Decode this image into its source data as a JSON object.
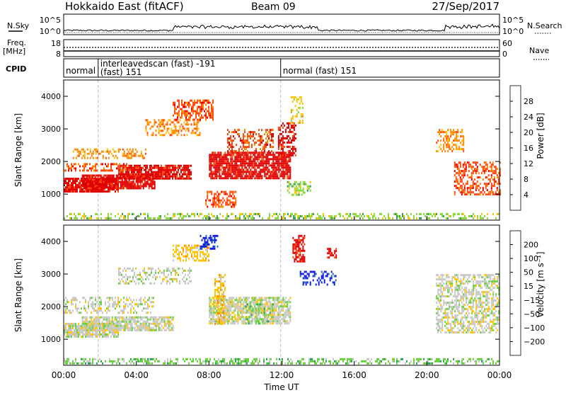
{
  "header": {
    "station": "Hokkaido East (fitACF)",
    "beam": "Beam 09",
    "date": "27/Sep/2017"
  },
  "left_labels": {
    "nsky": "N.Sky",
    "freq": "Freq.",
    "freq_unit": "[MHz]",
    "cpid": "CPID"
  },
  "right_labels": {
    "nsearch": "N.Search",
    "nave": "Nave"
  },
  "noise_panel": {
    "left_ticks": [
      "10^5",
      "10^0"
    ],
    "right_ticks": [
      "10^5",
      "10^0"
    ]
  },
  "freq_panel": {
    "left_ticks": [
      "18",
      "8"
    ],
    "right_ticks": [
      "60",
      "0"
    ]
  },
  "cpid_segments": [
    {
      "name": "normal",
      "name2": "",
      "start_hour": 0.0,
      "end_hour": 1.9
    },
    {
      "name": "interleavedscan (fast) -191",
      "name2": "(fast) 151",
      "start_hour": 1.9,
      "end_hour": 11.95
    },
    {
      "name": "normal (fast) 151",
      "name2": "",
      "start_hour": 11.95,
      "end_hour": 24.0
    }
  ],
  "chart_data": [
    {
      "type": "heatmap",
      "panel": "power",
      "ylabel": "Slant Range [km]",
      "xlabel": "",
      "xlim": [
        0,
        24
      ],
      "ylim": [
        200,
        4500
      ],
      "yticks": [
        1000,
        2000,
        3000,
        4000
      ],
      "colorbar": {
        "label": "Power [dB]",
        "ticks": [
          "28",
          "24",
          "20",
          "16",
          "12",
          "8",
          "4"
        ],
        "colors": [
          "#e00000",
          "#ff4a10",
          "#ff8a00",
          "#ffc400",
          "#8ad83a",
          "#3a9a5a",
          "#2850b0",
          "#1010e0"
        ]
      },
      "scatter_regions": [
        {
          "t0": 0.0,
          "t1": 3.0,
          "r0": 1050,
          "r1": 1500,
          "level": 0,
          "density": 0.9
        },
        {
          "t0": 1.0,
          "t1": 5.0,
          "r0": 1200,
          "r1": 1600,
          "level": 0,
          "density": 0.85
        },
        {
          "t0": 3.0,
          "t1": 7.0,
          "r0": 1500,
          "r1": 1900,
          "level": 0,
          "density": 0.8
        },
        {
          "t0": 0.0,
          "t1": 3.5,
          "r0": 1700,
          "r1": 1950,
          "level": 1,
          "density": 0.5
        },
        {
          "t0": 0.5,
          "t1": 4.5,
          "r0": 2100,
          "r1": 2400,
          "level": 2,
          "density": 0.45
        },
        {
          "t0": 4.5,
          "t1": 7.5,
          "r0": 2800,
          "r1": 3300,
          "level": 2,
          "density": 0.4
        },
        {
          "t0": 6.0,
          "t1": 8.2,
          "r0": 3300,
          "r1": 3900,
          "level": 1,
          "density": 0.55
        },
        {
          "t0": 8.0,
          "t1": 12.5,
          "r0": 1500,
          "r1": 2300,
          "level": 0,
          "density": 0.85
        },
        {
          "t0": 7.8,
          "t1": 9.5,
          "r0": 600,
          "r1": 1100,
          "level": 1,
          "density": 0.5
        },
        {
          "t0": 9.0,
          "t1": 11.5,
          "r0": 2300,
          "r1": 3000,
          "level": 1,
          "density": 0.45
        },
        {
          "t0": 11.8,
          "t1": 12.8,
          "r0": 2200,
          "r1": 3200,
          "level": 0,
          "density": 0.5
        },
        {
          "t0": 12.5,
          "t1": 13.2,
          "r0": 3200,
          "r1": 4000,
          "level": 3,
          "density": 0.35
        },
        {
          "t0": 12.3,
          "t1": 13.6,
          "r0": 1000,
          "r1": 1400,
          "level": 4,
          "density": 0.35
        },
        {
          "t0": 20.5,
          "t1": 22.0,
          "r0": 2300,
          "r1": 3000,
          "level": 2,
          "density": 0.45
        },
        {
          "t0": 21.5,
          "t1": 24.0,
          "r0": 1000,
          "r1": 2000,
          "level": 1,
          "density": 0.5
        },
        {
          "t0": 0.0,
          "t1": 24.0,
          "r0": 230,
          "r1": 420,
          "level": 4,
          "density": 0.4
        }
      ]
    },
    {
      "type": "heatmap",
      "panel": "velocity",
      "ylabel": "Slant Range [km]",
      "xlabel": "Time UT",
      "xlim": [
        0,
        24
      ],
      "ylim": [
        200,
        4500
      ],
      "yticks": [
        1000,
        2000,
        3000,
        4000
      ],
      "xticks": [
        "00:00",
        "04:00",
        "08:00",
        "12:00",
        "16:00",
        "20:00",
        "00:00"
      ],
      "colorbar": {
        "label": "Velocity [m s⁻¹]",
        "ticks": [
          "200",
          "100",
          "50",
          "15",
          "−15",
          "−50",
          "−100",
          "−200"
        ],
        "colors": [
          "#1020e0",
          "#2a70b0",
          "#2ea060",
          "#6ad040",
          "#c8c8c8",
          "#ffc400",
          "#ff8a00",
          "#ff4a10",
          "#e00000"
        ]
      },
      "scatter_regions": [
        {
          "t0": 0.0,
          "t1": 3.0,
          "r0": 1050,
          "r1": 1500,
          "level": 4,
          "density": 0.85
        },
        {
          "t0": 1.0,
          "t1": 6.0,
          "r0": 1250,
          "r1": 1700,
          "level": 4,
          "density": 0.8
        },
        {
          "t0": 0.0,
          "t1": 5.0,
          "r0": 1800,
          "r1": 2300,
          "level": 4,
          "density": 0.35
        },
        {
          "t0": 3.0,
          "t1": 7.0,
          "r0": 2700,
          "r1": 3200,
          "level": 4,
          "density": 0.35
        },
        {
          "t0": 6.0,
          "t1": 8.0,
          "r0": 3400,
          "r1": 3900,
          "level": 5,
          "density": 0.5
        },
        {
          "t0": 7.5,
          "t1": 8.5,
          "r0": 3800,
          "r1": 4200,
          "level": 0,
          "density": 0.5
        },
        {
          "t0": 8.0,
          "t1": 12.5,
          "r0": 1500,
          "r1": 2300,
          "level": 4,
          "density": 0.75
        },
        {
          "t0": 8.3,
          "t1": 8.9,
          "r0": 1500,
          "r1": 3000,
          "level": 5,
          "density": 0.5
        },
        {
          "t0": 10.0,
          "t1": 11.5,
          "r0": 1500,
          "r1": 2100,
          "level": 3,
          "density": 0.35
        },
        {
          "t0": 12.6,
          "t1": 13.3,
          "r0": 3400,
          "r1": 4200,
          "level": 8,
          "density": 0.6
        },
        {
          "t0": 14.5,
          "t1": 15.0,
          "r0": 3500,
          "r1": 3800,
          "level": 8,
          "density": 0.5
        },
        {
          "t0": 13.0,
          "t1": 15.0,
          "r0": 2700,
          "r1": 3100,
          "level": 0,
          "density": 0.35
        },
        {
          "t0": 20.5,
          "t1": 24.0,
          "r0": 1200,
          "r1": 3000,
          "level": 4,
          "density": 0.55
        },
        {
          "t0": 0.0,
          "t1": 24.0,
          "r0": 230,
          "r1": 420,
          "level": 3,
          "density": 0.4
        }
      ]
    }
  ]
}
